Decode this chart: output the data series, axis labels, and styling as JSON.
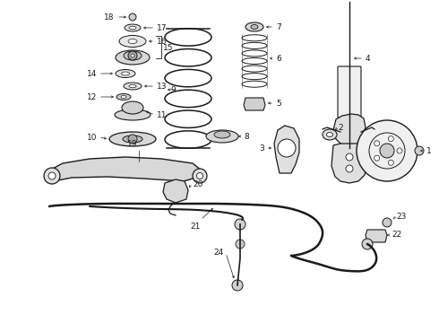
{
  "bg_color": "#ffffff",
  "line_color": "#1a1a1a",
  "label_color": "#111111",
  "font_size": 6.5,
  "fig_width": 4.9,
  "fig_height": 3.6,
  "dpi": 100
}
